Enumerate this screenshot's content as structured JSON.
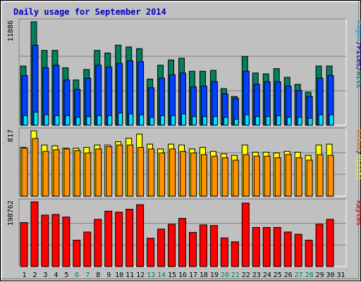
{
  "title": "Daily usage for September 2014",
  "colors": {
    "title": "#0000c0",
    "hits": "#008080",
    "files": "#0000ff",
    "pages": "#00c0ff",
    "visits": "#ffff00",
    "sites": "#ff8000",
    "kbytes": "#ff0000",
    "weekend_day": "#00805c",
    "weekday": "#000000",
    "panel_bg": "#c0c0c0",
    "bar_hits": "#00805c",
    "bar_files": "#0040ff",
    "bar_pages": "#00e0ff",
    "bar_visits": "#ffff00",
    "bar_sites": "#ff9000",
    "bar_kbytes": "#ff0000"
  },
  "chart_data": [
    {
      "type": "bar",
      "panel": "hits-files-pages",
      "ymax_label": "11886",
      "ylim": [
        0,
        11886
      ],
      "legend": [
        "Pages",
        "/",
        "Files",
        "/",
        "Hits"
      ],
      "categories": [
        "1",
        "2",
        "3",
        "4",
        "5",
        "6",
        "7",
        "8",
        "9",
        "10",
        "11",
        "12",
        "13",
        "14",
        "15",
        "16",
        "17",
        "18",
        "19",
        "20",
        "21",
        "22",
        "23",
        "24",
        "25",
        "26",
        "27",
        "28",
        "29",
        "30",
        "31"
      ],
      "series": [
        {
          "name": "Hits",
          "values": [
            6800,
            11886,
            8600,
            8600,
            6600,
            5200,
            6400,
            8600,
            8300,
            9200,
            9000,
            8800,
            5300,
            6900,
            7500,
            7700,
            6200,
            6200,
            6300,
            4200,
            3300,
            7900,
            6000,
            5900,
            6500,
            5500,
            4700,
            3800,
            6800,
            6800,
            0
          ]
        },
        {
          "name": "Files",
          "values": [
            5700,
            9200,
            6600,
            6900,
            5200,
            4100,
            5400,
            6900,
            6700,
            7100,
            7400,
            7300,
            4300,
            5400,
            5800,
            6000,
            4400,
            4500,
            5000,
            3600,
            3100,
            6200,
            4700,
            5000,
            5000,
            4500,
            4000,
            3300,
            5400,
            5700,
            0
          ]
        },
        {
          "name": "Pages",
          "values": [
            1100,
            1500,
            1200,
            1100,
            1100,
            900,
            1000,
            1100,
            1100,
            1400,
            1300,
            1200,
            900,
            1100,
            1100,
            1300,
            1000,
            1000,
            1000,
            900,
            700,
            1200,
            1000,
            1000,
            1100,
            900,
            900,
            800,
            1200,
            1200,
            0
          ]
        }
      ]
    },
    {
      "type": "bar",
      "panel": "visits-sites",
      "ymax_label": "817",
      "ylim": [
        0,
        817
      ],
      "legend": [
        "Sites",
        "/",
        "Visits"
      ],
      "categories": [
        "1",
        "2",
        "3",
        "4",
        "5",
        "6",
        "7",
        "8",
        "9",
        "10",
        "11",
        "12",
        "13",
        "14",
        "15",
        "16",
        "17",
        "18",
        "19",
        "20",
        "21",
        "22",
        "23",
        "24",
        "25",
        "26",
        "27",
        "28",
        "29",
        "30",
        "31"
      ],
      "series": [
        {
          "name": "Visits",
          "values": [
            610,
            817,
            640,
            630,
            600,
            600,
            610,
            640,
            640,
            680,
            725,
            775,
            650,
            590,
            650,
            640,
            590,
            610,
            560,
            530,
            510,
            640,
            550,
            550,
            540,
            560,
            550,
            510,
            640,
            650,
            0
          ]
        },
        {
          "name": "Sites",
          "values": [
            600,
            720,
            560,
            580,
            590,
            570,
            540,
            590,
            620,
            640,
            640,
            610,
            590,
            540,
            590,
            560,
            540,
            520,
            500,
            480,
            450,
            520,
            500,
            500,
            480,
            520,
            480,
            450,
            520,
            510,
            0
          ]
        }
      ]
    },
    {
      "type": "bar",
      "panel": "kbytes",
      "ymax_label": "198762",
      "ylim": [
        0,
        198762
      ],
      "legend": [
        "KBytes"
      ],
      "categories": [
        "1",
        "2",
        "3",
        "4",
        "5",
        "6",
        "7",
        "8",
        "9",
        "10",
        "11",
        "12",
        "13",
        "14",
        "15",
        "16",
        "17",
        "18",
        "19",
        "20",
        "21",
        "22",
        "23",
        "24",
        "25",
        "26",
        "27",
        "28",
        "29",
        "30",
        "31"
      ],
      "series": [
        {
          "name": "KBytes",
          "values": [
            135000,
            198762,
            158000,
            160000,
            152000,
            81000,
            106000,
            145000,
            170000,
            167000,
            176000,
            190000,
            87000,
            115000,
            130000,
            148000,
            105000,
            128000,
            126000,
            88000,
            76000,
            195000,
            120000,
            120000,
            120000,
            106000,
            99000,
            81000,
            130000,
            145000,
            0
          ]
        }
      ]
    }
  ],
  "weekend_days": [
    "6",
    "7",
    "13",
    "14",
    "20",
    "21",
    "27",
    "28"
  ]
}
